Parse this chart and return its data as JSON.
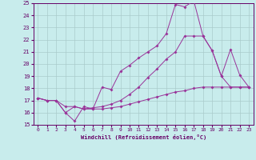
{
  "xlabel": "Windchill (Refroidissement éolien,°C)",
  "xlim": [
    -0.5,
    23.5
  ],
  "ylim": [
    15,
    25
  ],
  "yticks": [
    15,
    16,
    17,
    18,
    19,
    20,
    21,
    22,
    23,
    24,
    25
  ],
  "xticks": [
    0,
    1,
    2,
    3,
    4,
    5,
    6,
    7,
    8,
    9,
    10,
    11,
    12,
    13,
    14,
    15,
    16,
    17,
    18,
    19,
    20,
    21,
    22,
    23
  ],
  "bg_color": "#c8ecec",
  "grid_color": "#aacccc",
  "line_color": "#993399",
  "line1_x": [
    0,
    1,
    2,
    3,
    4,
    5,
    6,
    7,
    8,
    9,
    10,
    11,
    12,
    13,
    14,
    15,
    16,
    17,
    18,
    19,
    20,
    21,
    22,
    23
  ],
  "line1_y": [
    17.2,
    17.0,
    17.0,
    16.0,
    15.3,
    16.5,
    16.3,
    16.3,
    16.4,
    16.5,
    16.7,
    16.9,
    17.1,
    17.3,
    17.5,
    17.7,
    17.8,
    18.0,
    18.1,
    18.1,
    18.1,
    18.1,
    18.1,
    18.1
  ],
  "line2_x": [
    0,
    1,
    2,
    3,
    4,
    5,
    6,
    7,
    8,
    9,
    10,
    11,
    12,
    13,
    14,
    15,
    16,
    17,
    18,
    19,
    20,
    21,
    22,
    23
  ],
  "line2_y": [
    17.2,
    17.0,
    17.0,
    16.0,
    16.5,
    16.3,
    16.3,
    18.1,
    17.9,
    19.4,
    19.9,
    20.5,
    21.0,
    21.5,
    22.5,
    24.9,
    24.7,
    25.2,
    22.3,
    21.1,
    19.0,
    18.1,
    18.1,
    18.1
  ],
  "line3_x": [
    0,
    1,
    2,
    3,
    4,
    5,
    6,
    7,
    8,
    9,
    10,
    11,
    12,
    13,
    14,
    15,
    16,
    17,
    18,
    19,
    20,
    21,
    22,
    23
  ],
  "line3_y": [
    17.2,
    17.0,
    17.0,
    16.5,
    16.5,
    16.3,
    16.4,
    16.5,
    16.7,
    17.0,
    17.5,
    18.1,
    18.9,
    19.6,
    20.4,
    21.0,
    22.3,
    22.3,
    22.3,
    21.1,
    19.0,
    21.2,
    19.1,
    18.1
  ]
}
